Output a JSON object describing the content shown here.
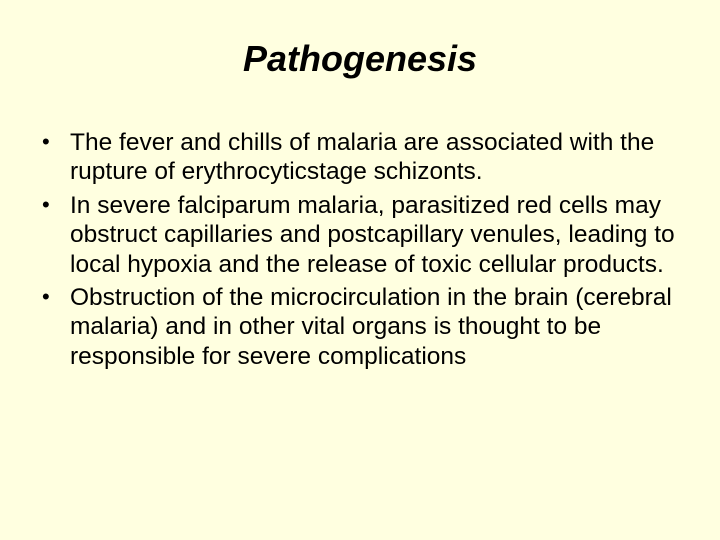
{
  "slide": {
    "background_color": "#ffffe0",
    "text_color": "#000000",
    "title": {
      "text": "Pathogenesis",
      "font_size": 36,
      "font_style": "italic",
      "font_weight": "bold",
      "align": "center"
    },
    "bullets": {
      "font_size": 24.5,
      "line_height": 1.2,
      "marker": "•",
      "items": [
        "The fever and chills of malaria are associated with the rupture of erythrocyticstage schizonts.",
        "In severe falciparum malaria, parasitized red cells may obstruct capillaries and postcapillary venules, leading to local hypoxia and the release of toxic cellular products.",
        "Obstruction of the microcirculation in the brain (cerebral malaria) and in other vital organs is thought to be responsible for severe complications"
      ]
    }
  }
}
